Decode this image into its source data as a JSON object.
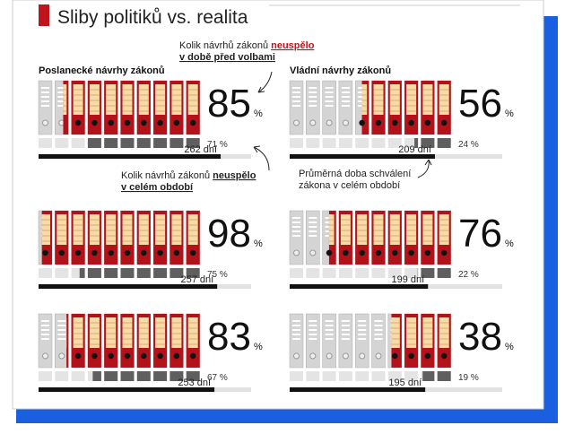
{
  "title": "Sliby politiků vs. realita",
  "notes": {
    "before": {
      "text": "Kolik návrhů zákonů",
      "emph": "neuspělo",
      "rest": "v době před volbami"
    },
    "whole": {
      "text": "Kolik návrhů zákonů",
      "emph": "neuspělo",
      "rest": "v celém období"
    },
    "days": {
      "line1": "Průměrná doba schválení",
      "line2": "zákona v celém období"
    }
  },
  "columns": [
    {
      "heading": "Poslanecké návrhy zákonů",
      "panels": [
        {
          "before": 85,
          "unit": "%",
          "whole": 71,
          "whole_label": "71 %",
          "days": 262,
          "days_label": "262 dní"
        },
        {
          "before": 98,
          "unit": "%",
          "whole": 75,
          "whole_label": "75 %",
          "days": 257,
          "days_label": "257 dní"
        },
        {
          "before": 83,
          "unit": "%",
          "whole": 67,
          "whole_label": "67 %",
          "days": 253,
          "days_label": "253 dní"
        }
      ]
    },
    {
      "heading": "Vládní návrhy zákonů",
      "panels": [
        {
          "before": 56,
          "unit": "%",
          "whole": 24,
          "whole_label": "24 %",
          "days": 209,
          "days_label": "209 dní"
        },
        {
          "before": 76,
          "unit": "%",
          "whole": 22,
          "whole_label": "22 %",
          "days": 199,
          "days_label": "199 dní"
        },
        {
          "before": 38,
          "unit": "%",
          "whole": 19,
          "whole_label": "19 %",
          "days": 195,
          "days_label": "195 dní"
        }
      ]
    }
  ]
}
